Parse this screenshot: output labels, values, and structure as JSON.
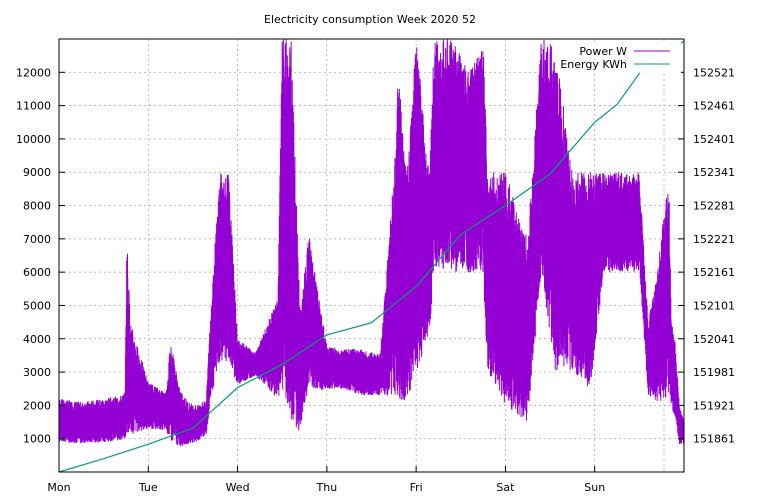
{
  "chart_data": {
    "type": "line",
    "title": "Electricity consumption Week 2020 52",
    "xlabel": "",
    "ylabel": "",
    "y2label": "",
    "x_tick_labels": [
      "Mon",
      "Tue",
      "Wed",
      "Thu",
      "Fri",
      "Sat",
      "Sun"
    ],
    "x_range_days": [
      0,
      7
    ],
    "ylim": [
      0,
      13000
    ],
    "y_ticks": [
      1000,
      2000,
      3000,
      4000,
      5000,
      6000,
      7000,
      8000,
      9000,
      10000,
      11000,
      12000
    ],
    "y2lim": [
      151801,
      152581
    ],
    "y2_ticks": [
      151861,
      151921,
      151981,
      152041,
      152101,
      152161,
      152221,
      152281,
      152341,
      152401,
      152461,
      152521
    ],
    "grid": true,
    "legend_position": "top-right",
    "series": [
      {
        "name": "Power W",
        "axis": "left",
        "color": "#9400d3",
        "style": "envelope",
        "x": [
          0,
          0.25,
          0.5,
          0.7,
          0.74,
          0.76,
          0.8,
          1.0,
          1.2,
          1.25,
          1.35,
          1.45,
          1.55,
          1.65,
          1.7,
          1.8,
          1.9,
          2.0,
          2.2,
          2.45,
          2.5,
          2.6,
          2.7,
          2.8,
          2.9,
          3.0,
          3.15,
          3.4,
          3.45,
          3.6,
          3.75,
          3.8,
          3.9,
          4.0,
          4.15,
          4.2,
          4.4,
          4.6,
          4.75,
          4.8,
          5.0,
          5.25,
          5.4,
          5.55,
          5.75,
          5.95,
          6.1,
          6.2,
          6.4,
          6.5,
          6.6,
          6.7,
          6.83,
          6.86,
          6.9,
          6.95,
          7.0
        ],
        "low": [
          900,
          850,
          900,
          950,
          1000,
          1000,
          1100,
          1300,
          1250,
          900,
          750,
          850,
          900,
          1100,
          2200,
          3300,
          3300,
          2600,
          2900,
          2200,
          2500,
          1400,
          1200,
          2600,
          2400,
          2500,
          2500,
          2300,
          2300,
          2300,
          2300,
          2100,
          2100,
          2900,
          4200,
          6000,
          6000,
          6000,
          6000,
          3000,
          2000,
          1500,
          6000,
          3000,
          3000,
          2500,
          6000,
          6000,
          6000,
          6000,
          2300,
          2100,
          2200,
          2000,
          1500,
          800,
          800
        ],
        "high": [
          2200,
          2100,
          2200,
          2300,
          2400,
          7200,
          4500,
          2700,
          2400,
          4000,
          2500,
          2100,
          2000,
          2200,
          5000,
          9000,
          9000,
          4000,
          3600,
          5200,
          13000,
          13000,
          4800,
          7200,
          5400,
          3800,
          3700,
          3700,
          3600,
          3600,
          9000,
          12000,
          9000,
          13000,
          9000,
          13000,
          13000,
          12000,
          13000,
          9000,
          9000,
          7000,
          13000,
          13000,
          9000,
          9000,
          9000,
          9000,
          9000,
          9000,
          4500,
          6000,
          9000,
          4500,
          4000,
          2000,
          1500
        ]
      },
      {
        "name": "Energy KWh",
        "axis": "right",
        "color": "#009e73",
        "style": "line",
        "x": [
          0,
          0.5,
          1.0,
          1.5,
          2.0,
          2.5,
          3.0,
          3.5,
          4.0,
          4.5,
          5.0,
          5.5,
          6.0,
          6.25,
          6.5,
          6.75,
          7.0
        ],
        "values": [
          151801,
          151825,
          151851,
          151880,
          151953,
          151995,
          152048,
          152070,
          152135,
          152229,
          152281,
          152338,
          152431,
          152463,
          152519,
          152553,
          152577
        ]
      }
    ]
  }
}
